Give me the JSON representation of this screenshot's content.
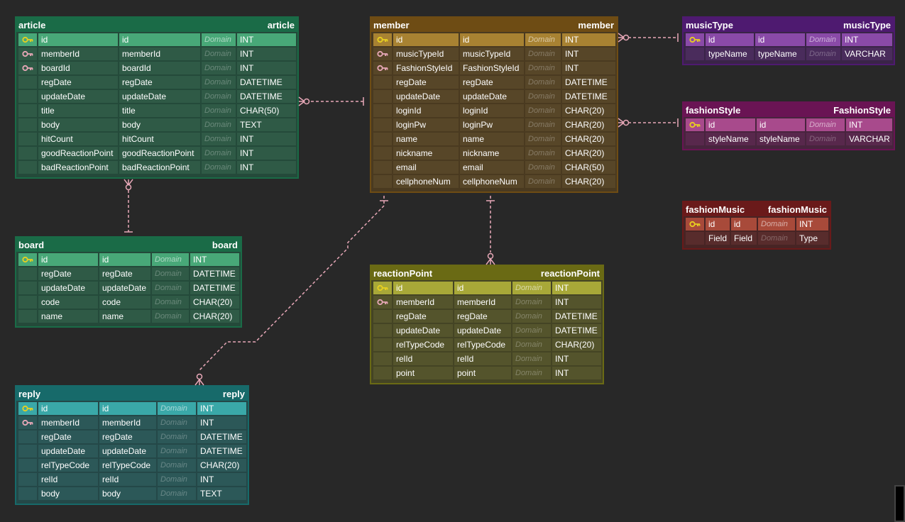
{
  "colors": {
    "background": "#282828",
    "relationship_line": "#e8a8b8",
    "pk_key_icon": "#e8d020",
    "fk_key_icon": "#e8a8b8"
  },
  "tables": [
    {
      "id": "article",
      "title": "article",
      "physical": "article",
      "color": {
        "header": "#1a6b47",
        "pk": "#48a878",
        "body": "#244a3a",
        "cell": "#2f5a46",
        "border": "#1a6b47"
      },
      "cols": [
        152,
        110,
        114,
        48,
        82
      ],
      "rows": [
        {
          "key": "pk",
          "name": "id",
          "physical": "id",
          "domain": "Domain",
          "type": "INT"
        },
        {
          "key": "fk",
          "name": "memberId",
          "physical": "memberId",
          "domain": "Domain",
          "type": "INT"
        },
        {
          "key": "fk",
          "name": "boardId",
          "physical": "boardId",
          "domain": "Domain",
          "type": "INT"
        },
        {
          "key": "",
          "name": "regDate",
          "physical": "regDate",
          "domain": "Domain",
          "type": "DATETIME"
        },
        {
          "key": "",
          "name": "updateDate",
          "physical": "updateDate",
          "domain": "Domain",
          "type": "DATETIME"
        },
        {
          "key": "",
          "name": "title",
          "physical": "title",
          "domain": "Domain",
          "type": "CHAR(50)"
        },
        {
          "key": "",
          "name": "body",
          "physical": "body",
          "domain": "Domain",
          "type": "TEXT"
        },
        {
          "key": "",
          "name": "hitCount",
          "physical": "hitCount",
          "domain": "Domain",
          "type": "INT"
        },
        {
          "key": "",
          "name": "goodReactionPoint",
          "physical": "goodReactionPoint",
          "domain": "Domain",
          "type": "INT"
        },
        {
          "key": "",
          "name": "badReactionPoint",
          "physical": "badReactionPoint",
          "domain": "Domain",
          "type": "INT"
        }
      ]
    },
    {
      "id": "member",
      "title": "member",
      "physical": "member",
      "color": {
        "header": "#6e4c14",
        "pk": "#a88232",
        "body": "#4a3a20",
        "cell": "#574628",
        "border": "#6e4c14"
      },
      "cols": [
        92,
        90,
        50,
        80
      ],
      "rows": [
        {
          "key": "pk",
          "name": "id",
          "physical": "id",
          "domain": "Domain",
          "type": "INT"
        },
        {
          "key": "fk",
          "name": "musicTypeId",
          "physical": "musicTypeId",
          "domain": "Domain",
          "type": "INT"
        },
        {
          "key": "fk",
          "name": "FashionStyleId",
          "physical": "FashionStyleId",
          "domain": "Domain",
          "type": "INT"
        },
        {
          "key": "",
          "name": "regDate",
          "physical": "regDate",
          "domain": "Domain",
          "type": "DATETIME"
        },
        {
          "key": "",
          "name": "updateDate",
          "physical": "updateDate",
          "domain": "Domain",
          "type": "DATETIME"
        },
        {
          "key": "",
          "name": "loginId",
          "physical": "loginId",
          "domain": "Domain",
          "type": "CHAR(20)"
        },
        {
          "key": "",
          "name": "loginPw",
          "physical": "loginPw",
          "domain": "Domain",
          "type": "CHAR(20)"
        },
        {
          "key": "",
          "name": "name",
          "physical": "name",
          "domain": "Domain",
          "type": "CHAR(20)"
        },
        {
          "key": "",
          "name": "nickname",
          "physical": "nickname",
          "domain": "Domain",
          "type": "CHAR(20)"
        },
        {
          "key": "",
          "name": "email",
          "physical": "email",
          "domain": "Domain",
          "type": "CHAR(50)"
        },
        {
          "key": "",
          "name": "cellphoneNum",
          "physical": "cellphoneNum",
          "domain": "Domain",
          "type": "CHAR(20)"
        }
      ]
    },
    {
      "id": "musicType",
      "title": "musicType",
      "physical": "musicType",
      "color": {
        "header": "#4e1a70",
        "pk": "#8a4aa8",
        "body": "#3a2448",
        "cell": "#4a2c5c",
        "border": "#4e1a70"
      },
      "cols": [
        68,
        70,
        48,
        70
      ],
      "rows": [
        {
          "key": "pk",
          "name": "id",
          "physical": "id",
          "domain": "Domain",
          "type": "INT"
        },
        {
          "key": "",
          "name": "typeName",
          "physical": "typeName",
          "domain": "Domain",
          "type": "VARCHAR"
        }
      ]
    },
    {
      "id": "fashionStyle",
      "title": "fashionStyle",
      "physical": "FashionStyle",
      "color": {
        "header": "#6a1454",
        "pk": "#a84a8c",
        "body": "#48243e",
        "cell": "#58284c",
        "border": "#6a1454"
      },
      "cols": [
        70,
        68,
        54,
        72
      ],
      "rows": [
        {
          "key": "pk",
          "name": "id",
          "physical": "id",
          "domain": "Domain",
          "type": "INT"
        },
        {
          "key": "",
          "name": "styleName",
          "physical": "styleName",
          "domain": "Domain",
          "type": "VARCHAR"
        }
      ]
    },
    {
      "id": "fashionMusic",
      "title": "fashionMusic",
      "physical": "fashionMusic",
      "color": {
        "header": "#6a1a1a",
        "pk": "#a84a3a",
        "body": "#482424",
        "cell": "#582c2c",
        "border": "#6a1a1a"
      },
      "cols": [
        34,
        36,
        52,
        40
      ],
      "rows": [
        {
          "key": "pk",
          "name": "id",
          "physical": "id",
          "domain": "Domain",
          "type": "INT"
        },
        {
          "key": "",
          "name": "Field",
          "physical": "Field",
          "domain": "Domain",
          "type": "Type"
        }
      ]
    },
    {
      "id": "board",
      "title": "board",
      "physical": "board",
      "color": {
        "header": "#1a6b47",
        "pk": "#48a878",
        "body": "#244a3a",
        "cell": "#2f5a46",
        "border": "#1a6b47"
      },
      "cols": [
        84,
        72,
        52,
        80
      ],
      "rows": [
        {
          "key": "pk",
          "name": "id",
          "physical": "id",
          "domain": "Domain",
          "type": "INT"
        },
        {
          "key": "",
          "name": "regDate",
          "physical": "regDate",
          "domain": "Domain",
          "type": "DATETIME"
        },
        {
          "key": "",
          "name": "updateDate",
          "physical": "updateDate",
          "domain": "Domain",
          "type": "DATETIME"
        },
        {
          "key": "",
          "name": "code",
          "physical": "code",
          "domain": "Domain",
          "type": "CHAR(20)"
        },
        {
          "key": "",
          "name": "name",
          "physical": "name",
          "domain": "Domain",
          "type": "CHAR(20)"
        }
      ]
    },
    {
      "id": "reactionPoint",
      "title": "reactionPoint",
      "physical": "reactionPoint",
      "color": {
        "header": "#6a6a14",
        "pk": "#a8a838",
        "body": "#444424",
        "cell": "#54542c",
        "border": "#6a6a14"
      },
      "cols": [
        84,
        80,
        54,
        82
      ],
      "rows": [
        {
          "key": "pk",
          "name": "id",
          "physical": "id",
          "domain": "Domain",
          "type": "INT"
        },
        {
          "key": "fk",
          "name": "memberId",
          "physical": "memberId",
          "domain": "Domain",
          "type": "INT"
        },
        {
          "key": "",
          "name": "regDate",
          "physical": "regDate",
          "domain": "Domain",
          "type": "DATETIME"
        },
        {
          "key": "",
          "name": "updateDate",
          "physical": "updateDate",
          "domain": "Domain",
          "type": "DATETIME"
        },
        {
          "key": "",
          "name": "relTypeCode",
          "physical": "relTypeCode",
          "domain": "Domain",
          "type": "CHAR(20)"
        },
        {
          "key": "",
          "name": "relId",
          "physical": "relId",
          "domain": "Domain",
          "type": "INT"
        },
        {
          "key": "",
          "name": "point",
          "physical": "point",
          "domain": "Domain",
          "type": "INT"
        }
      ]
    },
    {
      "id": "reply",
      "title": "reply",
      "physical": "reply",
      "color": {
        "header": "#176a6a",
        "pk": "#3aa8a8",
        "body": "#244848",
        "cell": "#2c5858",
        "border": "#176a6a"
      },
      "cols": [
        84,
        80,
        54,
        80
      ],
      "rows": [
        {
          "key": "pk",
          "name": "id",
          "physical": "id",
          "domain": "Domain",
          "type": "INT"
        },
        {
          "key": "fk",
          "name": "memberId",
          "physical": "memberId",
          "domain": "Domain",
          "type": "INT"
        },
        {
          "key": "",
          "name": "regDate",
          "physical": "regDate",
          "domain": "Domain",
          "type": "DATETIME"
        },
        {
          "key": "",
          "name": "updateDate",
          "physical": "updateDate",
          "domain": "Domain",
          "type": "DATETIME"
        },
        {
          "key": "",
          "name": "relTypeCode",
          "physical": "relTypeCode",
          "domain": "Domain",
          "type": "CHAR(20)"
        },
        {
          "key": "",
          "name": "relId",
          "physical": "relId",
          "domain": "Domain",
          "type": "INT"
        },
        {
          "key": "",
          "name": "body",
          "physical": "body",
          "domain": "Domain",
          "type": "TEXT"
        }
      ]
    }
  ],
  "relationships": [
    {
      "from": "member",
      "to": "article",
      "cardinality": "one-to-zero-or-many"
    },
    {
      "from": "board",
      "to": "article",
      "cardinality": "one-to-zero-or-many"
    },
    {
      "from": "member",
      "to": "reply",
      "cardinality": "one-to-zero-or-many"
    },
    {
      "from": "member",
      "to": "reactionPoint",
      "cardinality": "one-to-zero-or-many"
    },
    {
      "from": "musicType",
      "to": "member",
      "cardinality": "one-to-zero-or-many"
    },
    {
      "from": "fashionStyle",
      "to": "member",
      "cardinality": "one-to-zero-or-many"
    }
  ]
}
